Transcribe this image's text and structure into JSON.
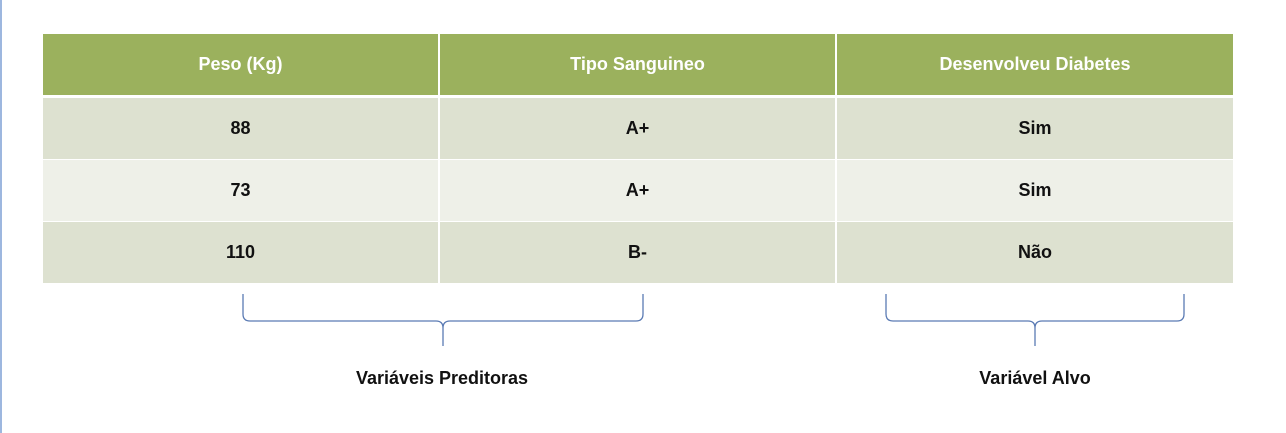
{
  "table": {
    "headers": [
      "Peso (Kg)",
      "Tipo Sanguineo",
      "Desenvolveu Diabetes"
    ],
    "rows": [
      [
        "88",
        "A+",
        "Sim"
      ],
      [
        "73",
        "A+",
        "Sim"
      ],
      [
        "110",
        "B-",
        "Não"
      ]
    ]
  },
  "groups": {
    "predictors_label": "Variáveis Preditoras",
    "target_label": "Variável Alvo"
  },
  "colors": {
    "header_bg": "#9bb15d",
    "row_dark": "#dde1d0",
    "row_light": "#eef0e8",
    "brace": "#5b7bb4"
  }
}
